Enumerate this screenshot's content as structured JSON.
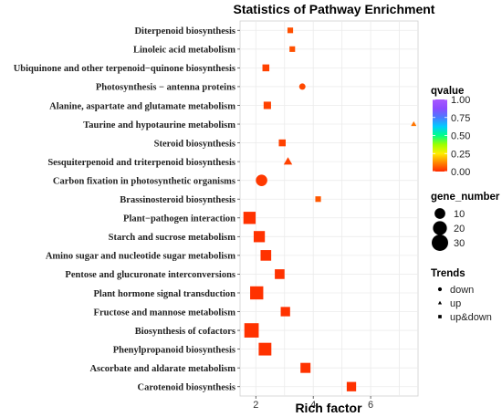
{
  "chart_data": {
    "type": "scatter",
    "title": "Statistics of Pathway Enrichment",
    "xlabel": "Rich factor",
    "ylabel": "",
    "xlim": [
      1.45,
      7.65
    ],
    "xticks": [
      2,
      4,
      6
    ],
    "grid": true,
    "points": [
      {
        "pathway": "Diterpenoid biosynthesis",
        "x": 3.2,
        "qvalue": 0.05,
        "gene_number": 2,
        "trend": "up&down"
      },
      {
        "pathway": "Linoleic acid metabolism",
        "x": 3.27,
        "qvalue": 0.05,
        "gene_number": 2,
        "trend": "up&down"
      },
      {
        "pathway": "Ubiquinone and other terpenoid−quinone biosynthesis",
        "x": 2.35,
        "qvalue": 0.03,
        "gene_number": 4,
        "trend": "up&down"
      },
      {
        "pathway": "Photosynthesis − antenna proteins",
        "x": 3.62,
        "qvalue": 0.04,
        "gene_number": 2,
        "trend": "down"
      },
      {
        "pathway": "Alanine, aspartate and glutamate metabolism",
        "x": 2.4,
        "qvalue": 0.03,
        "gene_number": 5,
        "trend": "up&down"
      },
      {
        "pathway": "Taurine and hypotaurine metabolism",
        "x": 7.5,
        "qvalue": 0.1,
        "gene_number": 1,
        "trend": "up"
      },
      {
        "pathway": "Steroid biosynthesis",
        "x": 2.92,
        "qvalue": 0.03,
        "gene_number": 4,
        "trend": "up&down"
      },
      {
        "pathway": "Sesquiterpenoid and triterpenoid biosynthesis",
        "x": 3.12,
        "qvalue": 0.03,
        "gene_number": 5,
        "trend": "up"
      },
      {
        "pathway": "Carbon fixation in photosynthetic organisms",
        "x": 2.2,
        "qvalue": 0.02,
        "gene_number": 12,
        "trend": "down"
      },
      {
        "pathway": "Brassinosteroid biosynthesis",
        "x": 4.17,
        "qvalue": 0.06,
        "gene_number": 2,
        "trend": "up&down"
      },
      {
        "pathway": "Plant−pathogen interaction",
        "x": 1.78,
        "qvalue": 0.01,
        "gene_number": 20,
        "trend": "up&down"
      },
      {
        "pathway": "Starch and sucrose metabolism",
        "x": 2.12,
        "qvalue": 0.01,
        "gene_number": 16,
        "trend": "up&down"
      },
      {
        "pathway": "Amino sugar and nucleotide sugar metabolism",
        "x": 2.35,
        "qvalue": 0.01,
        "gene_number": 14,
        "trend": "up&down"
      },
      {
        "pathway": "Pentose and glucuronate interconversions",
        "x": 2.83,
        "qvalue": 0.01,
        "gene_number": 11,
        "trend": "up&down"
      },
      {
        "pathway": "Plant hormone signal transduction",
        "x": 2.03,
        "qvalue": 0.01,
        "gene_number": 24,
        "trend": "up&down"
      },
      {
        "pathway": "Fructose and mannose metabolism",
        "x": 3.03,
        "qvalue": 0.01,
        "gene_number": 10,
        "trend": "up&down"
      },
      {
        "pathway": "Biosynthesis of cofactors",
        "x": 1.85,
        "qvalue": 0.01,
        "gene_number": 30,
        "trend": "up&down"
      },
      {
        "pathway": "Phenylpropanoid biosynthesis",
        "x": 2.32,
        "qvalue": 0.01,
        "gene_number": 22,
        "trend": "up&down"
      },
      {
        "pathway": "Ascorbate and aldarate metabolism",
        "x": 3.73,
        "qvalue": 0.01,
        "gene_number": 12,
        "trend": "up&down"
      },
      {
        "pathway": "Carotenoid biosynthesis",
        "x": 5.33,
        "qvalue": 0.01,
        "gene_number": 10,
        "trend": "up&down"
      }
    ],
    "legend": {
      "placement": "right",
      "color": {
        "title": "qvalue",
        "range": [
          0,
          1
        ],
        "ticks": [
          "1.00",
          "0.75",
          "0.50",
          "0.25",
          "0.00"
        ],
        "colors": [
          "#ff2a00",
          "#ff8800",
          "#ffee00",
          "#9cff00",
          "#00ff88",
          "#00ccff",
          "#4a7bff",
          "#8c4bff",
          "#a858ff"
        ]
      },
      "size": {
        "title": "gene_number",
        "entries": [
          {
            "label": "10",
            "value": 10
          },
          {
            "label": "20",
            "value": 20
          },
          {
            "label": "30",
            "value": 30
          }
        ]
      },
      "shape": {
        "title": "Trends",
        "entries": [
          {
            "label": "down",
            "shape": "circle"
          },
          {
            "label": "up",
            "shape": "triangle"
          },
          {
            "label": "up&down",
            "shape": "square"
          }
        ]
      }
    }
  }
}
